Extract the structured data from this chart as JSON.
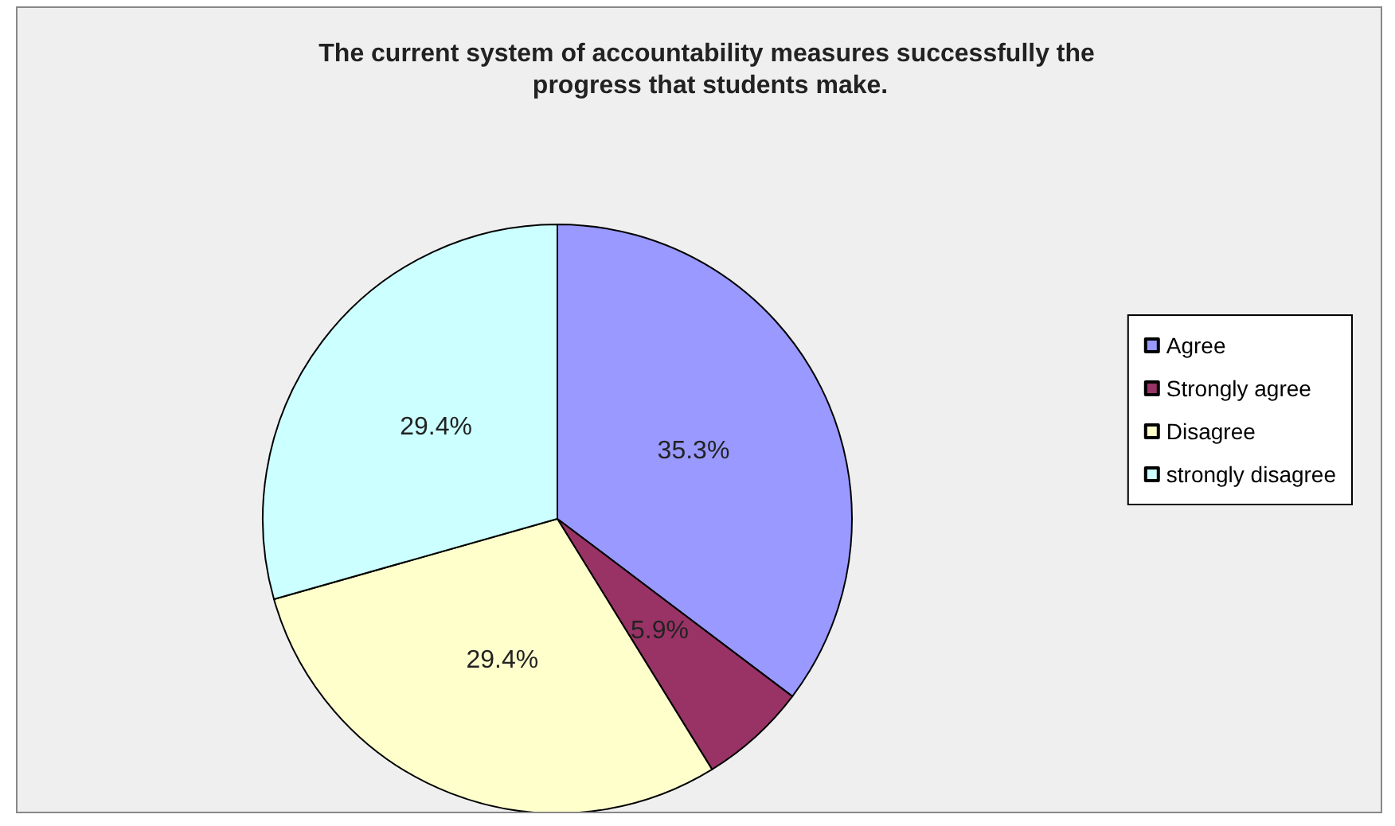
{
  "chart_data": {
    "type": "pie",
    "title": "The current system of accountability measures successfully the progress that students make.",
    "categories": [
      "Agree",
      "Strongly agree",
      "Disagree",
      "strongly disagree"
    ],
    "values": [
      35.3,
      5.9,
      29.4,
      29.4
    ],
    "colors": [
      "#9999ff",
      "#993366",
      "#ffffcc",
      "#ccffff"
    ],
    "value_labels": [
      "35.3%",
      "5.9%",
      "29.4%",
      "29.4%"
    ],
    "legend": "right"
  }
}
